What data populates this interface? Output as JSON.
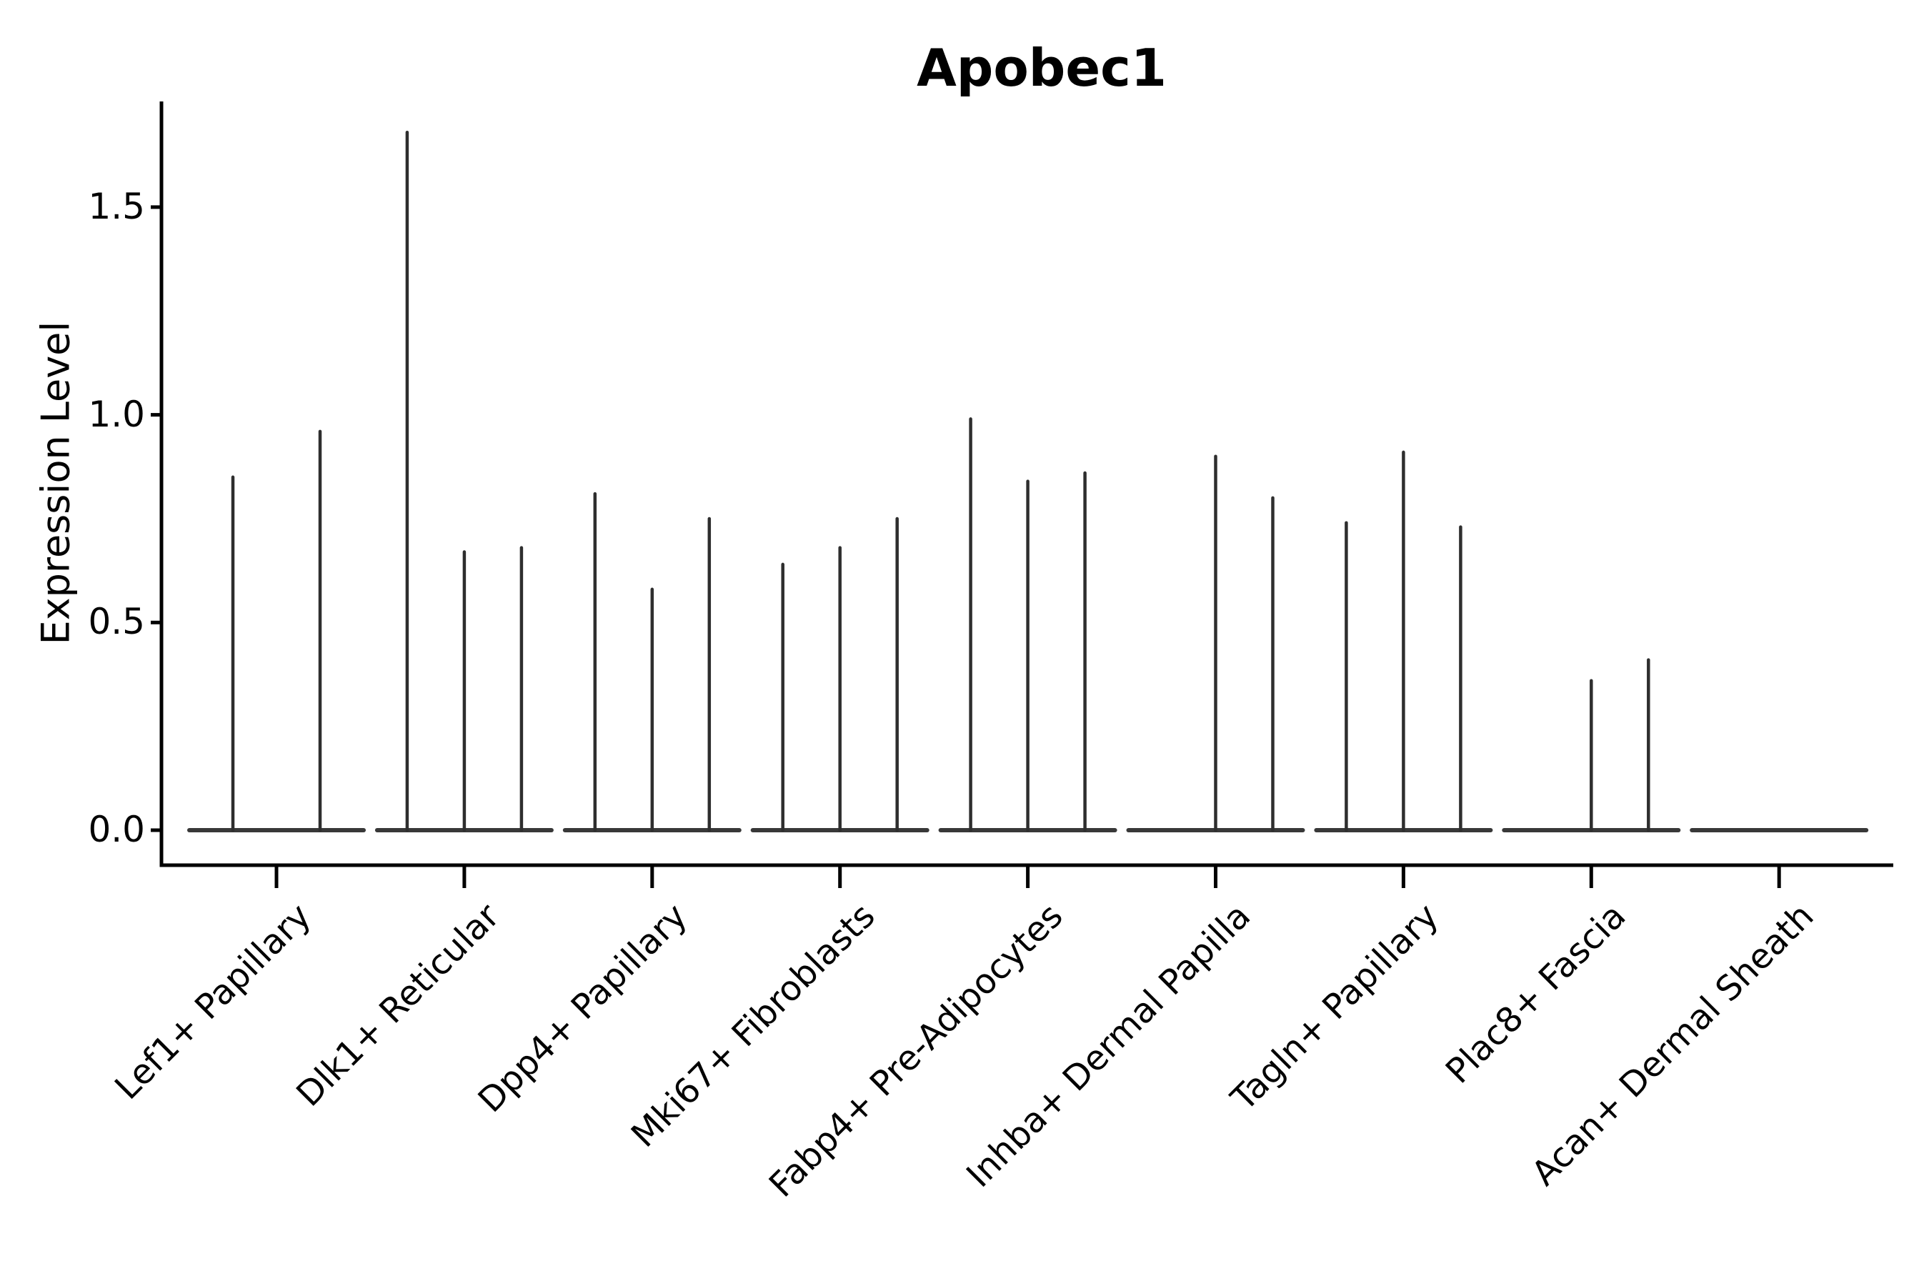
{
  "chart_data": {
    "type": "violin",
    "title": "Apobec1",
    "xlabel": "",
    "ylabel": "Expression Level",
    "grid": false,
    "legend_position": "none",
    "ylim": [
      -0.085,
      1.755
    ],
    "yticks": [
      {
        "value": 0.0,
        "label": "0.0"
      },
      {
        "value": 0.5,
        "label": "0.5"
      },
      {
        "value": 1.0,
        "label": "1.0"
      },
      {
        "value": 1.5,
        "label": "1.5"
      }
    ],
    "categories": [
      "Lef1+ Papillary",
      "Dlk1+ Reticular",
      "Dpp4+ Papillary",
      "Mki67+ Fibroblasts",
      "Fabp4+ Pre-Adipocytes",
      "Inhba+ Dermal Papilla",
      "Tagln+ Papillary",
      "Plac8+ Fascia",
      "Acan+ Dermal Sheath"
    ],
    "groups": [
      {
        "category": "Lef1+ Papillary",
        "spikes": [
          {
            "offset": -61,
            "max": 0.85
          },
          {
            "offset": 61,
            "max": 0.96
          }
        ]
      },
      {
        "category": "Dlk1+ Reticular",
        "spikes": [
          {
            "offset": -80,
            "max": 1.68
          },
          {
            "offset": 0,
            "max": 0.67
          },
          {
            "offset": 80,
            "max": 0.68
          }
        ]
      },
      {
        "category": "Dpp4+ Papillary",
        "spikes": [
          {
            "offset": -80,
            "max": 0.81
          },
          {
            "offset": 0,
            "max": 0.58
          },
          {
            "offset": 80,
            "max": 0.75
          }
        ]
      },
      {
        "category": "Mki67+ Fibroblasts",
        "spikes": [
          {
            "offset": -80,
            "max": 0.64
          },
          {
            "offset": 0,
            "max": 0.68
          },
          {
            "offset": 80,
            "max": 0.75
          }
        ]
      },
      {
        "category": "Fabp4+ Pre-Adipocytes",
        "spikes": [
          {
            "offset": -80,
            "max": 0.99
          },
          {
            "offset": 0,
            "max": 0.84
          },
          {
            "offset": 80,
            "max": 0.86
          }
        ]
      },
      {
        "category": "Inhba+ Dermal Papilla",
        "spikes": [
          {
            "offset": 0,
            "max": 0.9
          },
          {
            "offset": 80,
            "max": 0.8
          }
        ]
      },
      {
        "category": "Tagln+ Papillary",
        "spikes": [
          {
            "offset": -80,
            "max": 0.74
          },
          {
            "offset": 0,
            "max": 0.91
          },
          {
            "offset": 80,
            "max": 0.73
          }
        ]
      },
      {
        "category": "Plac8+ Fascia",
        "spikes": [
          {
            "offset": 0,
            "max": 0.36
          },
          {
            "offset": 80,
            "max": 0.41
          }
        ]
      },
      {
        "category": "Acan+ Dermal Sheath",
        "spikes": []
      }
    ],
    "colors": {
      "violin": "#2e2e2e",
      "baseline": "#383838",
      "axis": "#000000",
      "text": "#000000"
    }
  }
}
